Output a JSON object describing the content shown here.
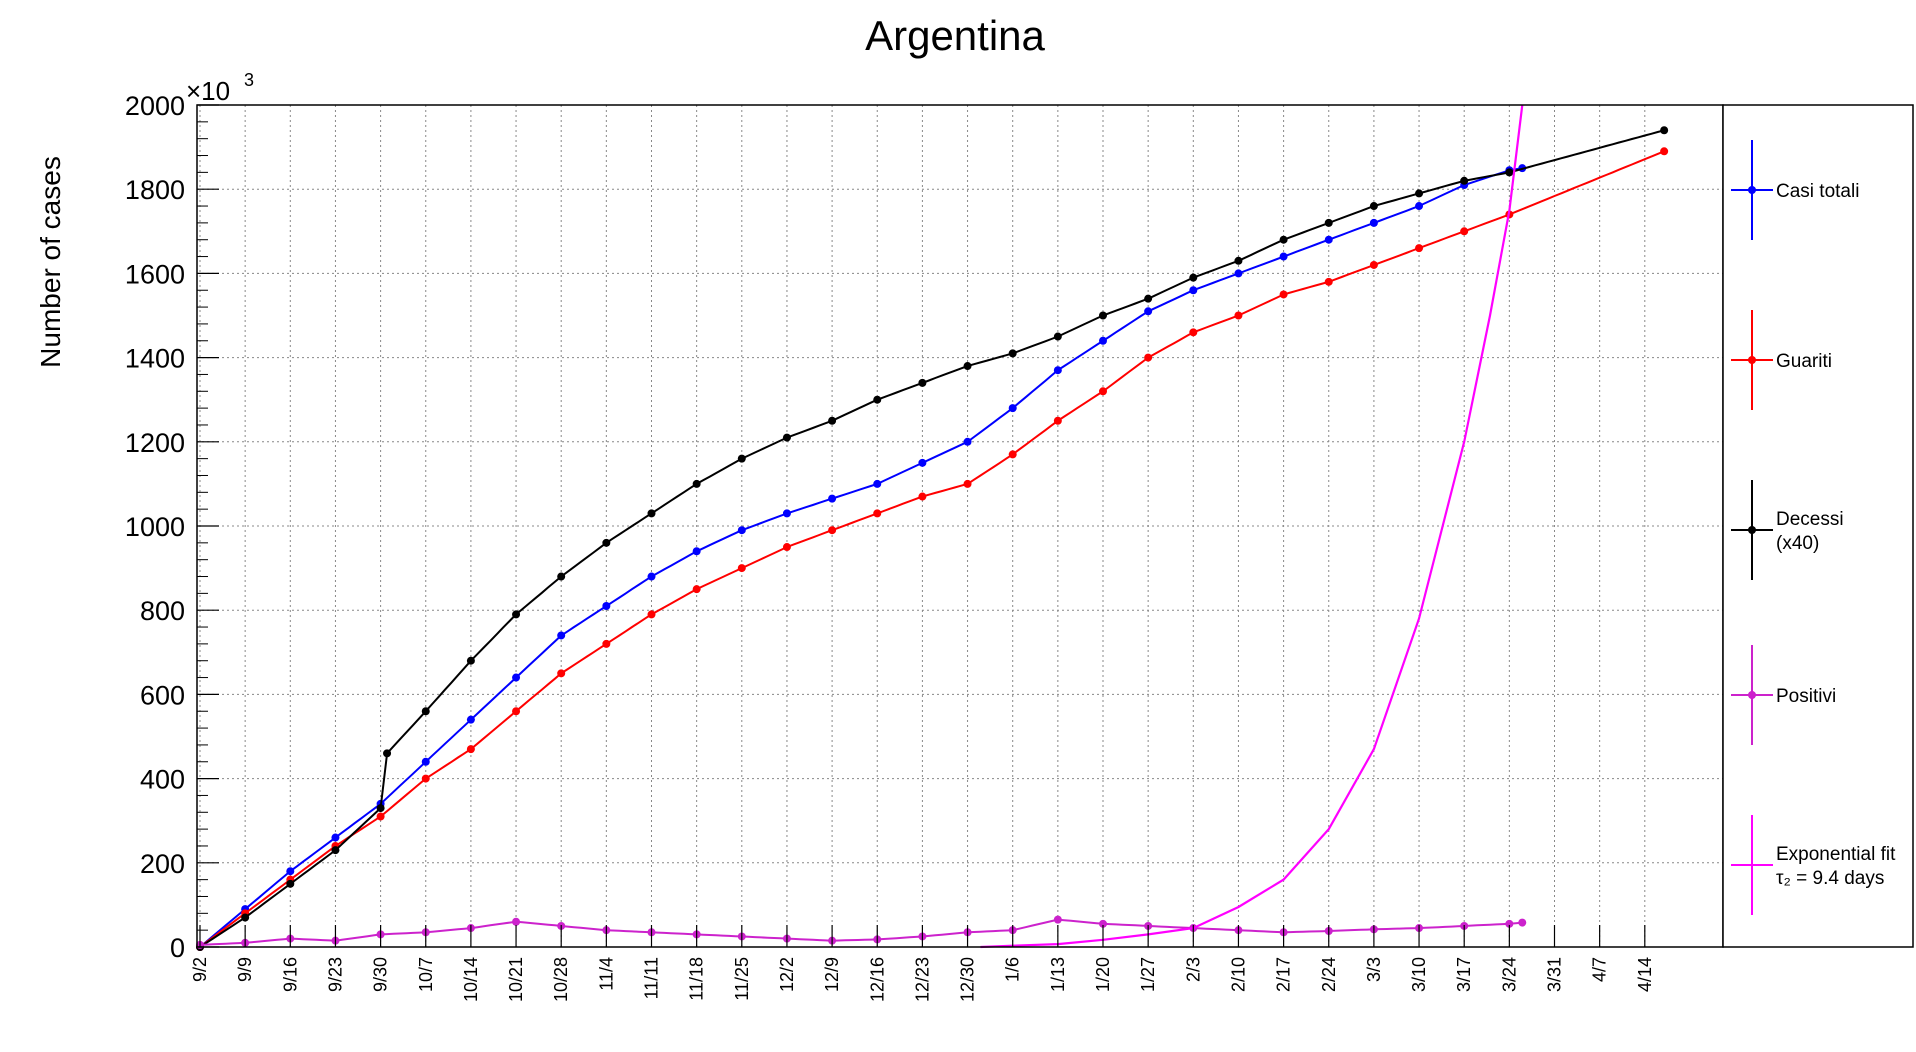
{
  "chart_data": {
    "type": "line",
    "title": "Argentina",
    "ylabel": "Number of cases",
    "y_exponent_label": "×10",
    "y_exponent_sup": "3",
    "ylim": [
      0,
      2000
    ],
    "y_ticks": [
      "0",
      "200",
      "400",
      "600",
      "800",
      "1000",
      "1200",
      "1400",
      "1600",
      "1800",
      "2000"
    ],
    "x_start_date": "2020-09-02",
    "x_ticks": [
      "9/2",
      "9/9",
      "9/16",
      "9/23",
      "9/30",
      "10/7",
      "10/14",
      "10/21",
      "10/28",
      "11/4",
      "11/11",
      "11/18",
      "11/25",
      "12/2",
      "12/9",
      "12/16",
      "12/23",
      "12/30",
      "1/6",
      "1/13",
      "1/20",
      "1/27",
      "2/3",
      "2/10",
      "2/17",
      "2/24",
      "3/3",
      "3/10",
      "3/17",
      "3/24",
      "3/31",
      "4/7",
      "4/14"
    ],
    "grid": true,
    "legend_placement": "right",
    "series": [
      {
        "name": "Casi totali",
        "color": "#0000ff",
        "x": [
          "9/2",
          "9/9",
          "9/16",
          "9/23",
          "9/30",
          "10/7",
          "10/14",
          "10/21",
          "10/28",
          "11/4",
          "11/11",
          "11/18",
          "11/25",
          "12/2",
          "12/9",
          "12/16",
          "12/23",
          "12/30",
          "1/6",
          "1/13",
          "1/20",
          "1/27",
          "2/3",
          "2/10",
          "2/17",
          "2/24",
          "3/3",
          "3/10",
          "3/17",
          "3/24",
          "3/26"
        ],
        "values": [
          0,
          90,
          180,
          260,
          340,
          440,
          540,
          640,
          740,
          810,
          880,
          940,
          990,
          1030,
          1065,
          1100,
          1150,
          1200,
          1280,
          1370,
          1440,
          1510,
          1560,
          1600,
          1640,
          1680,
          1720,
          1760,
          1810,
          1845,
          1850
        ]
      },
      {
        "name": "Guariti",
        "color": "#ff0000",
        "x": [
          "9/2",
          "9/9",
          "9/16",
          "9/23",
          "9/30",
          "10/7",
          "10/14",
          "10/21",
          "10/28",
          "11/4",
          "11/11",
          "11/18",
          "11/25",
          "12/2",
          "12/9",
          "12/16",
          "12/23",
          "12/30",
          "1/6",
          "1/13",
          "1/20",
          "1/27",
          "2/3",
          "2/10",
          "2/17",
          "2/24",
          "3/3",
          "3/10",
          "3/17",
          "3/24",
          "4/17"
        ],
        "values": [
          0,
          80,
          160,
          240,
          310,
          400,
          470,
          560,
          650,
          720,
          790,
          850,
          900,
          950,
          990,
          1030,
          1070,
          1100,
          1170,
          1250,
          1320,
          1400,
          1460,
          1500,
          1550,
          1580,
          1620,
          1660,
          1700,
          1740,
          1890
        ]
      },
      {
        "name": "Decessi\n(x40)",
        "color": "#000000",
        "x": [
          "9/2",
          "9/9",
          "9/16",
          "9/23",
          "9/30",
          "10/1",
          "10/7",
          "10/14",
          "10/21",
          "10/28",
          "11/4",
          "11/11",
          "11/18",
          "11/25",
          "12/2",
          "12/9",
          "12/16",
          "12/23",
          "12/30",
          "1/6",
          "1/13",
          "1/20",
          "1/27",
          "2/3",
          "2/10",
          "2/17",
          "2/24",
          "3/3",
          "3/10",
          "3/17",
          "3/24",
          "4/17"
        ],
        "values": [
          0,
          70,
          150,
          230,
          330,
          460,
          560,
          680,
          790,
          880,
          960,
          1030,
          1100,
          1160,
          1210,
          1250,
          1300,
          1340,
          1380,
          1410,
          1450,
          1500,
          1540,
          1590,
          1630,
          1680,
          1720,
          1760,
          1790,
          1820,
          1840,
          1940
        ]
      },
      {
        "name": "Positivi",
        "color": "#cc22cc",
        "x": [
          "9/2",
          "9/9",
          "9/16",
          "9/23",
          "9/30",
          "10/7",
          "10/14",
          "10/21",
          "10/28",
          "11/4",
          "11/11",
          "11/18",
          "11/25",
          "12/2",
          "12/9",
          "12/16",
          "12/23",
          "12/30",
          "1/6",
          "1/13",
          "1/20",
          "1/27",
          "2/3",
          "2/10",
          "2/17",
          "2/24",
          "3/3",
          "3/10",
          "3/17",
          "3/24",
          "3/26"
        ],
        "values": [
          5,
          10,
          20,
          15,
          30,
          35,
          45,
          60,
          50,
          40,
          35,
          30,
          25,
          20,
          15,
          18,
          25,
          35,
          40,
          65,
          55,
          50,
          45,
          40,
          35,
          38,
          42,
          45,
          50,
          55,
          58
        ]
      },
      {
        "name": "Exponential fit",
        "legend_line2": "τ₂ = 9.4 days",
        "color": "#ff00ff",
        "x": [
          "1/1",
          "1/6",
          "1/13",
          "1/20",
          "1/27",
          "2/3",
          "2/10",
          "2/17",
          "2/24",
          "3/3",
          "3/10",
          "3/17",
          "3/21",
          "3/24",
          "3/26"
        ],
        "values": [
          0,
          3,
          7,
          17,
          30,
          45,
          95,
          160,
          280,
          470,
          780,
          1200,
          1500,
          1750,
          2000
        ]
      }
    ]
  }
}
